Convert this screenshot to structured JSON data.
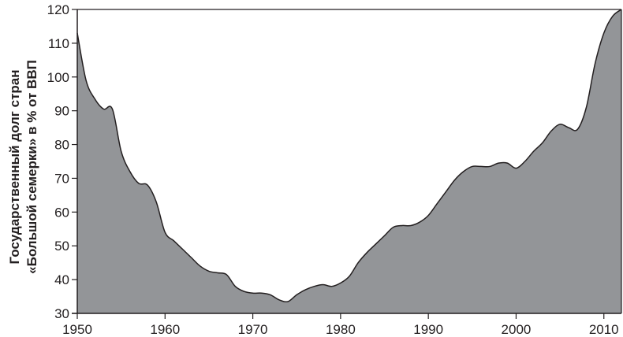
{
  "chart_data": {
    "type": "area",
    "title": "",
    "xlabel": "",
    "ylabel": [
      "Государственный долг стран",
      "«Большой семерки» в % от ВВП"
    ],
    "xlim": [
      1950,
      2012
    ],
    "ylim": [
      30,
      120
    ],
    "x_ticks": [
      "1950",
      "1960",
      "1970",
      "1980",
      "1990",
      "2000",
      "2010"
    ],
    "y_ticks": [
      "30",
      "40",
      "50",
      "60",
      "70",
      "80",
      "90",
      "100",
      "110",
      "120"
    ],
    "grid": false,
    "fill_color": "#939598",
    "line_color": "#231f20",
    "x": [
      1950,
      1951,
      1952,
      1953,
      1954,
      1955,
      1956,
      1957,
      1958,
      1959,
      1960,
      1961,
      1962,
      1963,
      1964,
      1965,
      1966,
      1967,
      1968,
      1969,
      1970,
      1971,
      1972,
      1973,
      1974,
      1975,
      1976,
      1977,
      1978,
      1979,
      1980,
      1981,
      1982,
      1983,
      1984,
      1985,
      1986,
      1987,
      1988,
      1989,
      1990,
      1991,
      1992,
      1993,
      1994,
      1995,
      1996,
      1997,
      1998,
      1999,
      2000,
      2001,
      2002,
      2003,
      2004,
      2005,
      2006,
      2007,
      2008,
      2009,
      2010,
      2011,
      2012
    ],
    "values": [
      113,
      99,
      93.5,
      90.5,
      90.5,
      78,
      72,
      68.5,
      68,
      63,
      54,
      51.5,
      49,
      46.5,
      44,
      42.5,
      42,
      41.5,
      38,
      36.5,
      36,
      36,
      35.5,
      34,
      33.5,
      35.5,
      37,
      38,
      38.5,
      38,
      39,
      41,
      45,
      48,
      50.5,
      53,
      55.5,
      56,
      56,
      57,
      59,
      62.5,
      66,
      69.5,
      72,
      73.5,
      73.5,
      73.5,
      74.5,
      74.5,
      73,
      75,
      78,
      80.5,
      84,
      86,
      85,
      84.5,
      91,
      104,
      113,
      118,
      120
    ]
  }
}
